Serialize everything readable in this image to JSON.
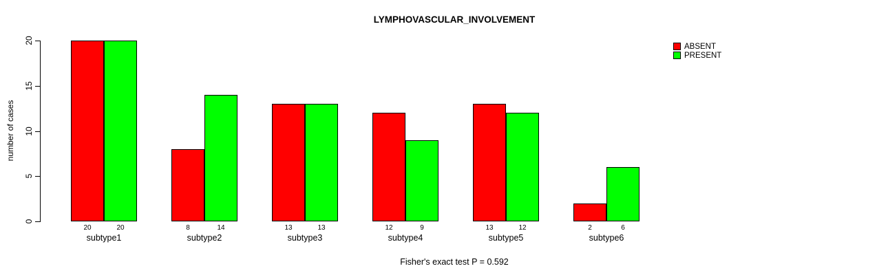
{
  "title": "LYMPHOVASCULAR_INVOLVEMENT",
  "ylabel": "number of cases",
  "footnote": "Fisher's exact test P = 0.592",
  "legend": [
    {
      "label": "ABSENT",
      "color": "#ff0000"
    },
    {
      "label": "PRESENT",
      "color": "#00ff00"
    }
  ],
  "chart_data": {
    "type": "bar",
    "title": "LYMPHOVASCULAR_INVOLVEMENT",
    "xlabel": "",
    "ylabel": "number of cases",
    "categories": [
      "subtype1",
      "subtype2",
      "subtype3",
      "subtype4",
      "subtype5",
      "subtype6"
    ],
    "series": [
      {
        "name": "ABSENT",
        "color": "#ff0000",
        "values": [
          20,
          8,
          13,
          12,
          13,
          2
        ]
      },
      {
        "name": "PRESENT",
        "color": "#00ff00",
        "values": [
          20,
          14,
          13,
          9,
          12,
          6
        ]
      }
    ],
    "ylim": [
      0,
      20
    ],
    "yticks": [
      0,
      5,
      10,
      15,
      20
    ],
    "grid": false,
    "legend_position": "top-right",
    "bar_value_labels": true,
    "annotation": "Fisher's exact test P = 0.592"
  }
}
